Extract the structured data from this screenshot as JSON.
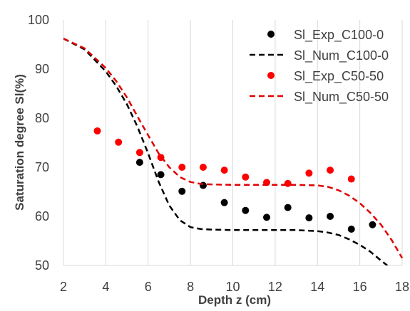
{
  "chart_data": {
    "type": "scatter",
    "xlabel": "Depth z (cm)",
    "ylabel": "Saturation degree Sl(%)",
    "xlim": [
      2,
      18
    ],
    "ylim": [
      50,
      100
    ],
    "xticks": [
      2,
      4,
      6,
      8,
      10,
      12,
      14,
      16,
      18
    ],
    "yticks": [
      50,
      60,
      70,
      80,
      90,
      100
    ],
    "grid": "vertical",
    "legend_position": "top-right",
    "series": [
      {
        "name": "Sl_Exp_C100-0",
        "kind": "markers",
        "color": "#000000",
        "x": [
          5.6,
          6.6,
          7.6,
          8.6,
          9.6,
          10.6,
          11.6,
          12.6,
          13.6,
          14.6,
          15.6,
          16.6
        ],
        "y": [
          71.0,
          68.5,
          65.1,
          66.3,
          62.8,
          61.2,
          59.8,
          61.8,
          59.7,
          60.0,
          57.4,
          58.3
        ]
      },
      {
        "name": "Sl_Num_C100-0",
        "kind": "dashed-line",
        "color": "#000000",
        "x": [
          2.0,
          3.0,
          4.0,
          4.5,
          5.0,
          5.5,
          6.0,
          6.5,
          7.0,
          7.5,
          8.0,
          8.5,
          9.0,
          10.0,
          11.0,
          12.0,
          13.0,
          14.0,
          14.5,
          15.0,
          15.5,
          16.0,
          16.5,
          17.0,
          17.3
        ],
        "y": [
          96.2,
          94.0,
          89.5,
          86.5,
          82.8,
          78.2,
          72.8,
          67.0,
          62.2,
          59.2,
          57.8,
          57.4,
          57.3,
          57.2,
          57.2,
          57.2,
          57.2,
          57.0,
          56.7,
          56.2,
          55.3,
          54.2,
          52.8,
          51.0,
          50.0
        ]
      },
      {
        "name": "Sl_Exp_C50-50",
        "kind": "markers",
        "color": "#ff0000",
        "x": [
          3.6,
          4.6,
          5.6,
          6.6,
          7.6,
          8.6,
          9.6,
          10.6,
          11.6,
          12.6,
          13.6,
          14.6,
          15.6
        ],
        "y": [
          77.4,
          75.1,
          73.0,
          72.0,
          70.0,
          70.0,
          69.4,
          68.0,
          66.9,
          66.7,
          68.8,
          69.4,
          67.6
        ]
      },
      {
        "name": "Sl_Num_C50-50",
        "kind": "dashed-line",
        "color": "#e00000",
        "x": [
          2.0,
          3.0,
          4.0,
          4.5,
          5.0,
          5.5,
          6.0,
          6.5,
          7.0,
          7.5,
          8.0,
          8.5,
          9.0,
          10.0,
          11.0,
          12.0,
          13.0,
          14.0,
          14.5,
          15.0,
          15.5,
          16.0,
          16.5,
          17.0,
          17.5,
          18.0
        ],
        "y": [
          96.2,
          94.2,
          90.2,
          87.5,
          84.2,
          80.3,
          76.5,
          72.8,
          70.0,
          68.0,
          67.0,
          66.6,
          66.5,
          66.4,
          66.4,
          66.4,
          66.4,
          66.3,
          66.0,
          65.3,
          64.2,
          62.7,
          60.7,
          58.3,
          55.2,
          51.5
        ]
      }
    ]
  }
}
